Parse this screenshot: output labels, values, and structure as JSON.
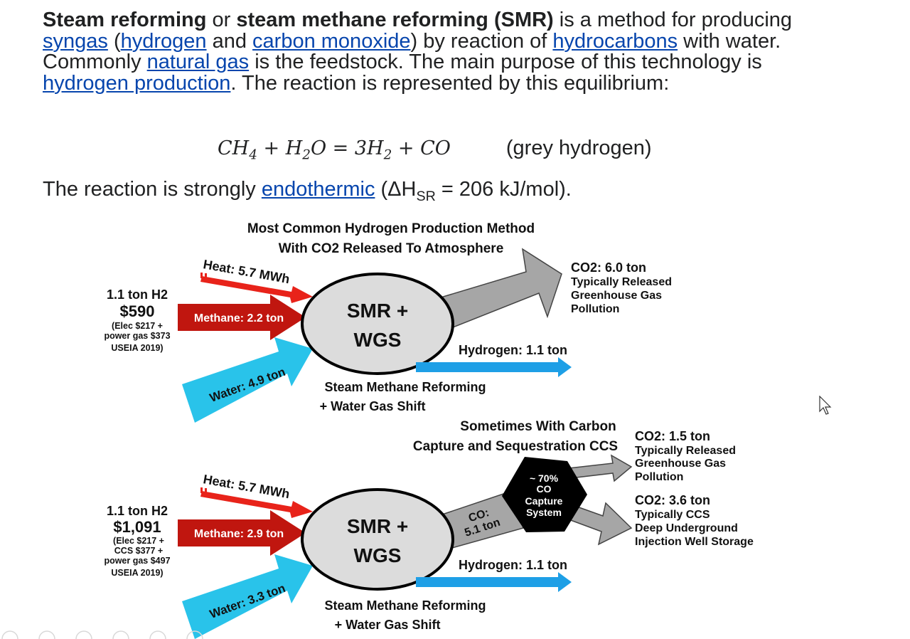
{
  "article": {
    "intro_bold_1": "Steam reforming",
    "intro_or": " or ",
    "intro_bold_2": "steam methane reforming (SMR)",
    "intro_t1": " is a method for producing ",
    "link_syngas": "syngas",
    "intro_t2": " (",
    "link_hydrogen": "hydrogen",
    "intro_t3": " and ",
    "link_co": "carbon monoxide",
    "intro_t4": ") by reaction of ",
    "link_hydrocarbons": "hydrocarbons",
    "intro_t5": " with water. Commonly ",
    "link_natural_gas": "natural gas",
    "intro_t6": " is the feedstock. The main purpose of this technology is ",
    "link_h2_production": "hydrogen production",
    "intro_t7": ". The reaction is represented by this equilibrium:",
    "eq_part1": "CH",
    "eq_sub1": "4",
    "eq_part2": " + H",
    "eq_sub2": "2",
    "eq_part3": "O = 3H",
    "eq_sub3": "2",
    "eq_part4": " + CO",
    "eq_note": "(grey hydrogen)",
    "endo_t1": "The reaction is strongly ",
    "link_endothermic": "endothermic",
    "endo_t2": " (ΔH",
    "endo_sub": "SR",
    "endo_t3": " = 206 kJ/mol)."
  },
  "diagram": {
    "top": {
      "title_line1": "Most Common Hydrogen Production Method",
      "title_line2": "With CO2 Released To Atmosphere",
      "heat": "Heat: 5.7 MWh",
      "cost_line1": "1.1 ton H2",
      "cost_line2": "$590",
      "cost_note1": "(Elec $217 +",
      "cost_note2": "power gas $373",
      "cost_note3": "USEIA 2019)",
      "methane": "Methane: 2.2 ton",
      "water": "Water: 4.9 ton",
      "smr_line1": "SMR +",
      "smr_line2": "WGS",
      "co2_line1": "CO2:  6.0 ton",
      "co2_line2": "Typically Released",
      "co2_line3": "Greenhouse Gas",
      "co2_line4": "Pollution",
      "hydrogen": "Hydrogen: 1.1 ton",
      "process_line1": "Steam Methane Reforming",
      "process_line2": "+ Water Gas Shift"
    },
    "bottom": {
      "title_line1": "Sometimes With Carbon",
      "title_line2": "Capture and Sequestration CCS",
      "heat": "Heat: 5.7 MWh",
      "cost_line1": "1.1 ton H2",
      "cost_line2": "$1,091",
      "cost_note1": "(Elec $217 +",
      "cost_note2": "CCS $377 +",
      "cost_note3": "power gas $497",
      "cost_note4": "USEIA 2019)",
      "methane": "Methane: 2.9 ton",
      "water": "Water: 3.3 ton",
      "smr_line1": "SMR +",
      "smr_line2": "WGS",
      "co_line1": "CO:",
      "co_line2": "5.1 ton",
      "capture_line1": "~ 70%",
      "capture_line2": "CO",
      "capture_line3": "Capture",
      "capture_line4": "System",
      "co2a_line1": "CO2:  1.5 ton",
      "co2a_line2": "Typically Released",
      "co2a_line3": "Greenhouse Gas",
      "co2a_line4": "Pollution",
      "co2b_line1": "CO2:  3.6 ton",
      "co2b_line2": "Typically CCS",
      "co2b_line3": "Deep Underground",
      "co2b_line4": "Injection Well Storage",
      "hydrogen": "Hydrogen: 1.1 ton",
      "process_line1": "Steam Methane Reforming",
      "process_line2": "+ Water Gas Shift"
    },
    "colors": {
      "heat": "#e8231a",
      "methane": "#c0160f",
      "water": "#29c3ea",
      "hydrogen": "#1e9fe6",
      "co2": "#a6a6a6",
      "reactor_fill": "#dcdcdc",
      "capture_fill": "#000000"
    }
  },
  "icons": {
    "cursor": "mouse-pointer-icon"
  }
}
